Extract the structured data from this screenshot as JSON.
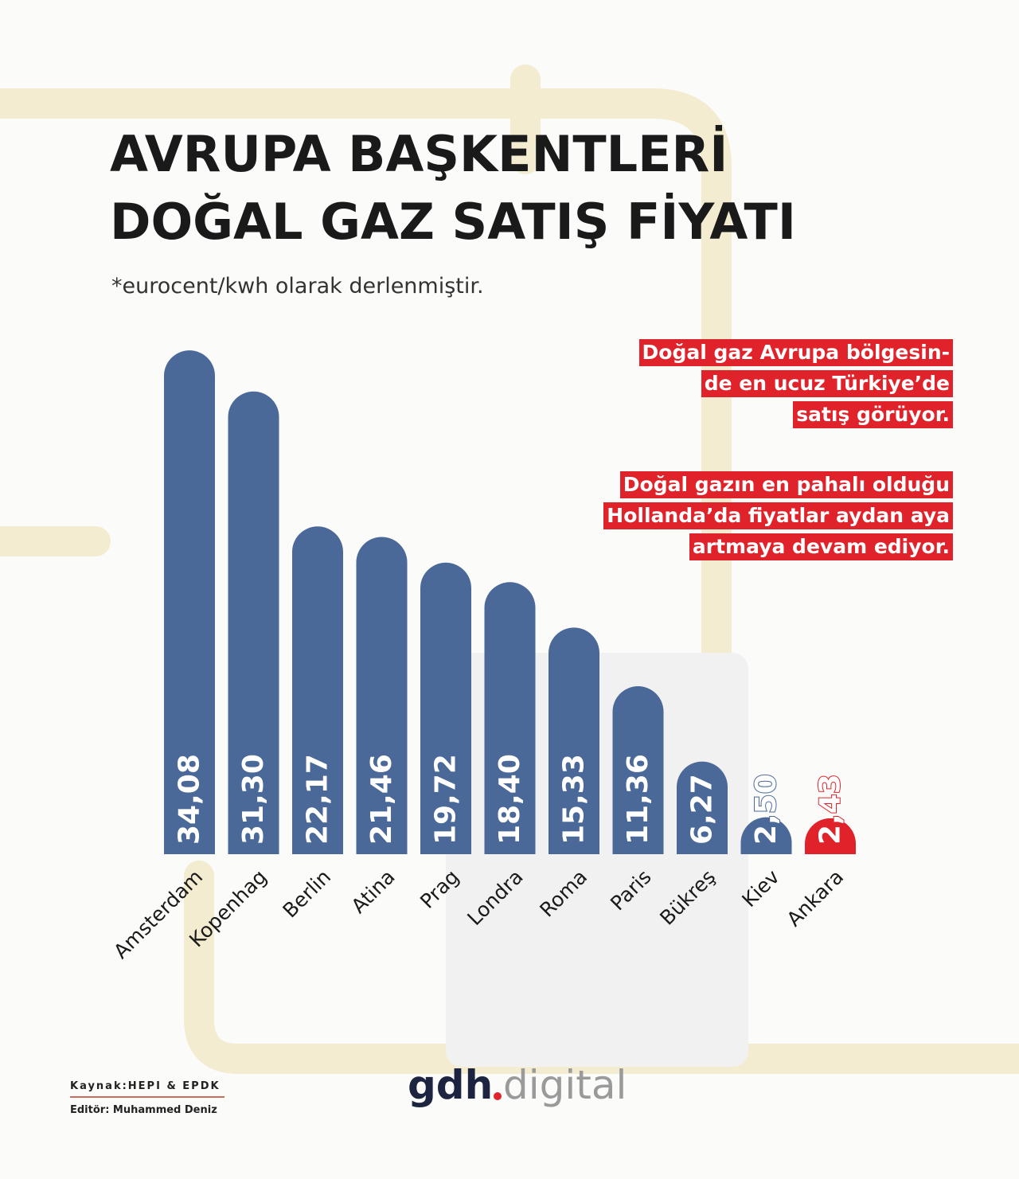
{
  "chart_data": {
    "type": "bar",
    "title": [
      "AVRUPA BAŞKENTLERİ",
      "DOĞAL GAZ SATIŞ  FİYATI"
    ],
    "subtitle": "*eurocent/kwh olarak derlenmiştir.",
    "categories": [
      "Amsterdam",
      "Kopenhag",
      "Berlin",
      "Atina",
      "Prag",
      "Londra",
      "Roma",
      "Paris",
      "Bükreş",
      "Kiev",
      "Ankara"
    ],
    "values": [
      34.08,
      31.3,
      22.17,
      21.46,
      19.72,
      18.4,
      15.33,
      11.36,
      6.27,
      2.5,
      2.43
    ],
    "value_labels": [
      "34,08",
      "31,30",
      "22,17",
      "21,46",
      "19,72",
      "18,40",
      "15,33",
      "11,36",
      "6,27",
      "2,50",
      "2,43"
    ],
    "colors": [
      "#4a6898",
      "#4a6898",
      "#4a6898",
      "#4a6898",
      "#4a6898",
      "#4a6898",
      "#4a6898",
      "#4a6898",
      "#4a6898",
      "#4a6898",
      "#e0232b"
    ],
    "annotations": [
      [
        "Doğal gaz Avrupa bölgesin-",
        "de en ucuz Türkiye’de",
        "satış görüyor."
      ],
      [
        "Doğal gazın en pahalı  olduğu",
        "Hollanda’da fiyatlar aydan aya",
        "artmaya devam ediyor."
      ]
    ]
  },
  "footer": {
    "source": "Kaynak:HEPI & EPDK",
    "editor": "Editör: Muhammed Deniz",
    "logo": [
      "gdh",
      "digital"
    ]
  }
}
